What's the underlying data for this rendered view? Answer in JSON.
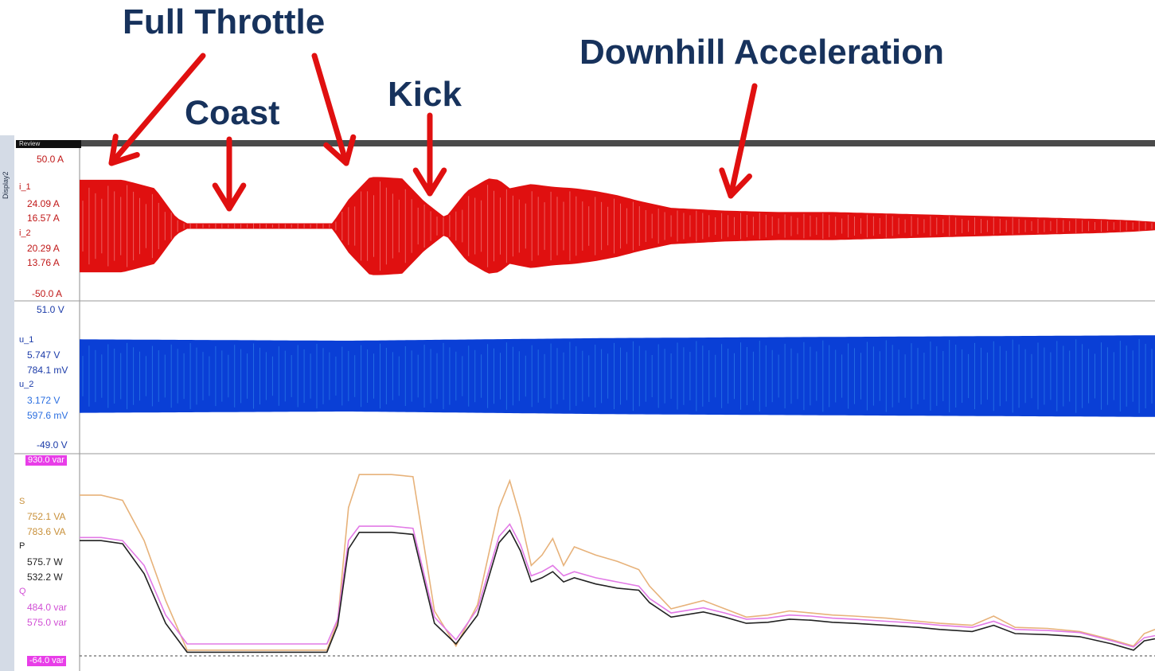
{
  "annotations": {
    "full_throttle": "Full Throttle",
    "coast": "Coast",
    "kick": "Kick",
    "downhill": "Downhill Acceleration"
  },
  "display_label": "Display2",
  "review_label": "Review",
  "panels": {
    "current": {
      "max": "50.0  A",
      "min": "-50.0  A",
      "ch1_name": "i_1",
      "ch1_v1": "24.09  A",
      "ch1_v2": "16.57  A",
      "ch2_name": "i_2",
      "ch2_v1": "20.29  A",
      "ch2_v2": "13.76  A"
    },
    "voltage": {
      "max": "51.0  V",
      "min": "-49.0  V",
      "ch1_name": "u_1",
      "ch1_v1": "5.747  V",
      "ch1_v2": "784.1 mV",
      "ch2_name": "u_2",
      "ch2_v1": "3.172  V",
      "ch2_v2": "597.6 mV"
    },
    "power": {
      "max": "930.0  var",
      "min": "-64.0  var",
      "s_name": "S",
      "s_v1": "752.1  VA",
      "s_v2": "783.6  VA",
      "p_name": "P",
      "p_v1": "575.7  W",
      "p_v2": "532.2  W",
      "q_name": "Q",
      "q_v1": "484.0  var",
      "q_v2": "575.0  var"
    }
  },
  "colors": {
    "current": "#e01010",
    "current_light": "#f08080",
    "voltage": "#0a3fd6",
    "voltage_light": "#2c7de8",
    "s": "#e7b27a",
    "q": "#e27ae6",
    "p": "#222222",
    "arrow": "#e01010",
    "annotation": "#17325c"
  },
  "chart_data": [
    {
      "type": "area",
      "name": "current-envelope",
      "ylim": [
        -50,
        50
      ],
      "x": [
        0,
        0.04,
        0.07,
        0.09,
        0.1,
        0.15,
        0.2,
        0.235,
        0.25,
        0.27,
        0.28,
        0.3,
        0.32,
        0.34,
        0.36,
        0.38,
        0.39,
        0.4,
        0.42,
        0.44,
        0.46,
        0.48,
        0.5,
        0.52,
        0.55,
        0.6,
        0.65,
        0.7,
        0.75,
        0.8,
        0.85,
        0.9,
        0.95,
        0.98,
        1.0
      ],
      "amplitude": [
        33,
        33,
        27,
        6,
        2,
        2,
        2,
        2,
        19,
        35,
        35,
        34,
        18,
        6,
        25,
        34,
        33,
        27,
        30,
        28,
        27,
        25,
        22,
        18,
        13,
        11,
        10,
        10,
        9,
        8,
        7,
        6,
        5,
        4,
        3
      ]
    },
    {
      "type": "area",
      "name": "voltage-envelope",
      "ylim": [
        -49,
        51
      ],
      "x": [
        0,
        0.25,
        0.5,
        0.75,
        1.0
      ],
      "amplitude": [
        27,
        26,
        28,
        29,
        30
      ]
    },
    {
      "type": "line",
      "name": "power",
      "ylim": [
        -64,
        930
      ],
      "x": [
        0,
        0.02,
        0.04,
        0.06,
        0.08,
        0.1,
        0.12,
        0.16,
        0.2,
        0.23,
        0.24,
        0.25,
        0.26,
        0.29,
        0.31,
        0.33,
        0.35,
        0.37,
        0.39,
        0.4,
        0.41,
        0.42,
        0.43,
        0.44,
        0.45,
        0.46,
        0.48,
        0.5,
        0.52,
        0.53,
        0.55,
        0.58,
        0.6,
        0.62,
        0.64,
        0.66,
        0.68,
        0.7,
        0.72,
        0.75,
        0.78,
        0.8,
        0.83,
        0.85,
        0.87,
        0.9,
        0.93,
        0.96,
        0.98,
        0.99,
        1.0
      ],
      "series": [
        {
          "name": "S",
          "values": [
            760,
            760,
            735,
            540,
            250,
            10,
            10,
            10,
            10,
            10,
            150,
            700,
            860,
            860,
            850,
            200,
            30,
            230,
            700,
            830,
            650,
            420,
            470,
            550,
            420,
            510,
            470,
            440,
            400,
            320,
            210,
            250,
            210,
            170,
            180,
            200,
            190,
            180,
            175,
            165,
            150,
            140,
            130,
            175,
            120,
            115,
            100,
            60,
            30,
            90,
            110
          ]
        },
        {
          "name": "Q",
          "values": [
            555,
            555,
            540,
            420,
            180,
            40,
            40,
            40,
            40,
            40,
            160,
            540,
            610,
            610,
            600,
            170,
            60,
            210,
            560,
            620,
            520,
            370,
            390,
            420,
            370,
            390,
            360,
            340,
            320,
            260,
            190,
            215,
            190,
            160,
            165,
            180,
            175,
            165,
            160,
            150,
            140,
            130,
            120,
            150,
            110,
            105,
            95,
            55,
            25,
            70,
            80
          ]
        },
        {
          "name": "P",
          "values": [
            540,
            540,
            525,
            380,
            140,
            0,
            0,
            0,
            0,
            0,
            130,
            500,
            580,
            580,
            570,
            140,
            40,
            180,
            530,
            590,
            490,
            340,
            360,
            390,
            340,
            360,
            330,
            310,
            300,
            240,
            170,
            195,
            170,
            140,
            145,
            160,
            155,
            145,
            140,
            130,
            120,
            110,
            100,
            130,
            90,
            85,
            75,
            40,
            10,
            55,
            65
          ]
        }
      ]
    }
  ]
}
